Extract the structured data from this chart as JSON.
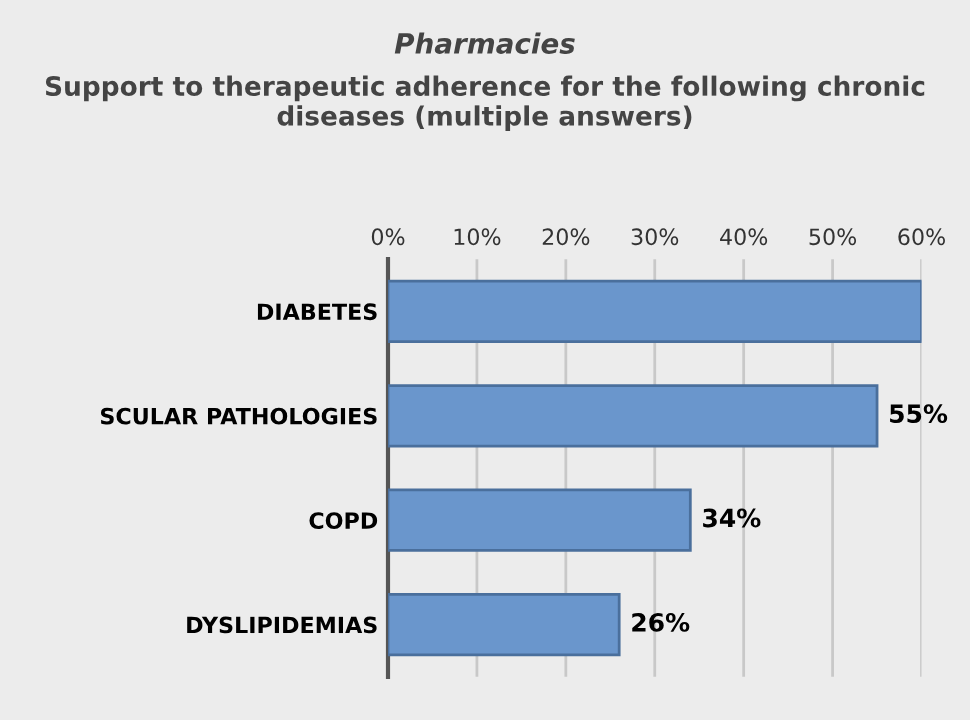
{
  "chart_data": {
    "type": "bar",
    "orientation": "horizontal",
    "title": "Pharmacies",
    "subtitle": "Support to therapeutic adherence for the following chronic diseases (multiple answers)",
    "categories": [
      "DIABETES",
      "SCULAR PATHOLOGIES",
      "COPD",
      "DYSLIPIDEMIAS"
    ],
    "values": [
      60,
      55,
      34,
      26
    ],
    "value_labels": [
      null,
      "55%",
      "34%",
      "26%"
    ],
    "color": "#6a96cc",
    "xlim": [
      0,
      60
    ],
    "xticks": [
      {
        "value": 0,
        "label": "0%"
      },
      {
        "value": 10,
        "label": "10%"
      },
      {
        "value": 20,
        "label": "20%"
      },
      {
        "value": 30,
        "label": "30%"
      },
      {
        "value": 40,
        "label": "40%"
      },
      {
        "value": 50,
        "label": "50%"
      },
      {
        "value": 60,
        "label": "60%"
      }
    ],
    "grid": "x"
  }
}
